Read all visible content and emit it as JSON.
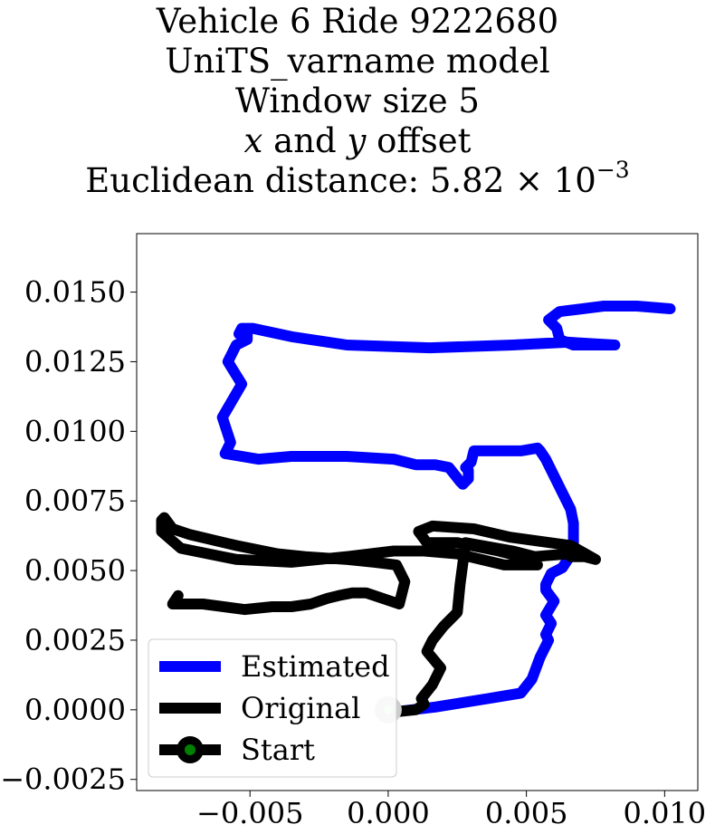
{
  "title": {
    "line1": "Vehicle 6 Ride 9222680",
    "line2": "UniTS_varname model",
    "line3": "Window size 5",
    "line4_var_x": "x",
    "line4_mid": "and",
    "line4_var_y": "y",
    "line4_end": "offset",
    "line5_prefix": "Euclidean distance: 5.82 × 10",
    "line5_exponent": "−3"
  },
  "chart_data": {
    "type": "line",
    "xlim": [
      -0.0091,
      0.0112
    ],
    "ylim": [
      -0.0029,
      0.0171
    ],
    "x_ticks": [
      -0.005,
      0.0,
      0.005,
      0.01
    ],
    "x_tick_labels": [
      "−0.005",
      "0.000",
      "0.005",
      "0.010"
    ],
    "y_ticks": [
      -0.0025,
      0.0,
      0.0025,
      0.005,
      0.0075,
      0.01,
      0.0125,
      0.015
    ],
    "y_tick_labels": [
      "−0.0025",
      "0.0000",
      "0.0025",
      "0.0050",
      "0.0075",
      "0.0100",
      "0.0125",
      "0.0150"
    ],
    "grid": false,
    "legend_position": "lower-left",
    "series": [
      {
        "name": "Estimated",
        "color": "#0000ff",
        "x": [
          0.0,
          0.0017,
          0.0036,
          0.0048,
          0.0052,
          0.0055,
          0.0058,
          0.0057,
          0.0059,
          0.0057,
          0.006,
          0.0057,
          0.0057,
          0.0059,
          0.0063,
          0.0067,
          0.0067,
          0.0066,
          0.0063,
          0.0057,
          0.0055,
          0.0054,
          0.0048,
          0.0031,
          0.003,
          0.0028,
          0.0029,
          0.0029,
          0.0027,
          0.0026,
          0.0022,
          0.0017,
          0.001,
          0.0002,
          -0.0015,
          -0.0035,
          -0.0047,
          -0.0059,
          -0.0057,
          -0.006,
          -0.0053,
          -0.0058,
          -0.0055,
          -0.0051,
          -0.0051,
          -0.0054,
          -0.0053,
          -0.0049,
          -0.0035,
          -0.0015,
          0.0015,
          0.0045,
          0.0065,
          0.0082,
          0.0067,
          0.0062,
          0.0061,
          0.0058,
          0.0062,
          0.0078,
          0.009,
          0.0102
        ],
        "y": [
          -0.0001,
          0.0001,
          0.0004,
          0.0006,
          0.0011,
          0.0019,
          0.0025,
          0.0027,
          0.0031,
          0.0034,
          0.0039,
          0.0043,
          0.0045,
          0.0049,
          0.0051,
          0.0057,
          0.0067,
          0.0072,
          0.0078,
          0.009,
          0.0093,
          0.0094,
          0.0093,
          0.0093,
          0.0089,
          0.0087,
          0.0086,
          0.0083,
          0.0081,
          0.0082,
          0.0087,
          0.0088,
          0.0088,
          0.009,
          0.0091,
          0.0091,
          0.009,
          0.0092,
          0.0096,
          0.0105,
          0.0117,
          0.0125,
          0.0131,
          0.0133,
          0.0135,
          0.0135,
          0.0137,
          0.0137,
          0.0134,
          0.0131,
          0.013,
          0.0131,
          0.0132,
          0.0131,
          0.0131,
          0.0133,
          0.0137,
          0.014,
          0.0143,
          0.0145,
          0.0145,
          0.0144
        ]
      },
      {
        "name": "Original",
        "color": "#000000",
        "x": [
          0.0,
          0.001,
          0.0013,
          0.0012,
          0.0016,
          0.0019,
          0.0014,
          0.0016,
          0.002,
          0.0025,
          0.0026,
          0.0028,
          0.0045,
          0.0053,
          0.0065,
          0.0066,
          0.0071,
          0.0075,
          0.0066,
          0.0044,
          0.0031,
          0.0016,
          0.0011,
          0.0014,
          0.0025,
          0.004,
          0.0052,
          0.0054,
          0.0042,
          0.0025,
          0.0013,
          0.0002,
          -0.0015,
          -0.0035,
          -0.0055,
          -0.0075,
          -0.0082,
          -0.0082,
          -0.0081,
          -0.0078,
          -0.0072,
          -0.0055,
          -0.004,
          -0.003,
          -0.0015,
          -0.0005,
          0.0003,
          0.0006,
          0.0004,
          -0.0008,
          -0.0013,
          -0.0018,
          -0.0022,
          -0.0028,
          -0.0035,
          -0.0042,
          -0.0052,
          -0.0067,
          -0.0078,
          -0.0076
        ],
        "y": [
          -0.0001,
          0.0,
          0.0002,
          0.0004,
          0.0009,
          0.0015,
          0.0021,
          0.0025,
          0.003,
          0.0035,
          0.0045,
          0.006,
          0.0057,
          0.0055,
          0.0056,
          0.0055,
          0.0055,
          0.0054,
          0.0059,
          0.0062,
          0.0065,
          0.0066,
          0.0064,
          0.006,
          0.006,
          0.0057,
          0.0054,
          0.0052,
          0.0052,
          0.0056,
          0.0057,
          0.0057,
          0.0055,
          0.0053,
          0.0054,
          0.0058,
          0.0064,
          0.0068,
          0.0069,
          0.0065,
          0.0063,
          0.0059,
          0.0056,
          0.0055,
          0.0054,
          0.0053,
          0.0052,
          0.0046,
          0.0038,
          0.0042,
          0.0042,
          0.0041,
          0.004,
          0.0038,
          0.0037,
          0.0037,
          0.0036,
          0.0038,
          0.0038,
          0.0041
        ]
      }
    ],
    "start_point": {
      "name": "Start",
      "x": 0.0,
      "y": 0.0,
      "outer_color": "#cccccc",
      "inner_color": "#ccffcc",
      "legend_outer_color": "#000000",
      "legend_inner_color": "#008000"
    }
  }
}
